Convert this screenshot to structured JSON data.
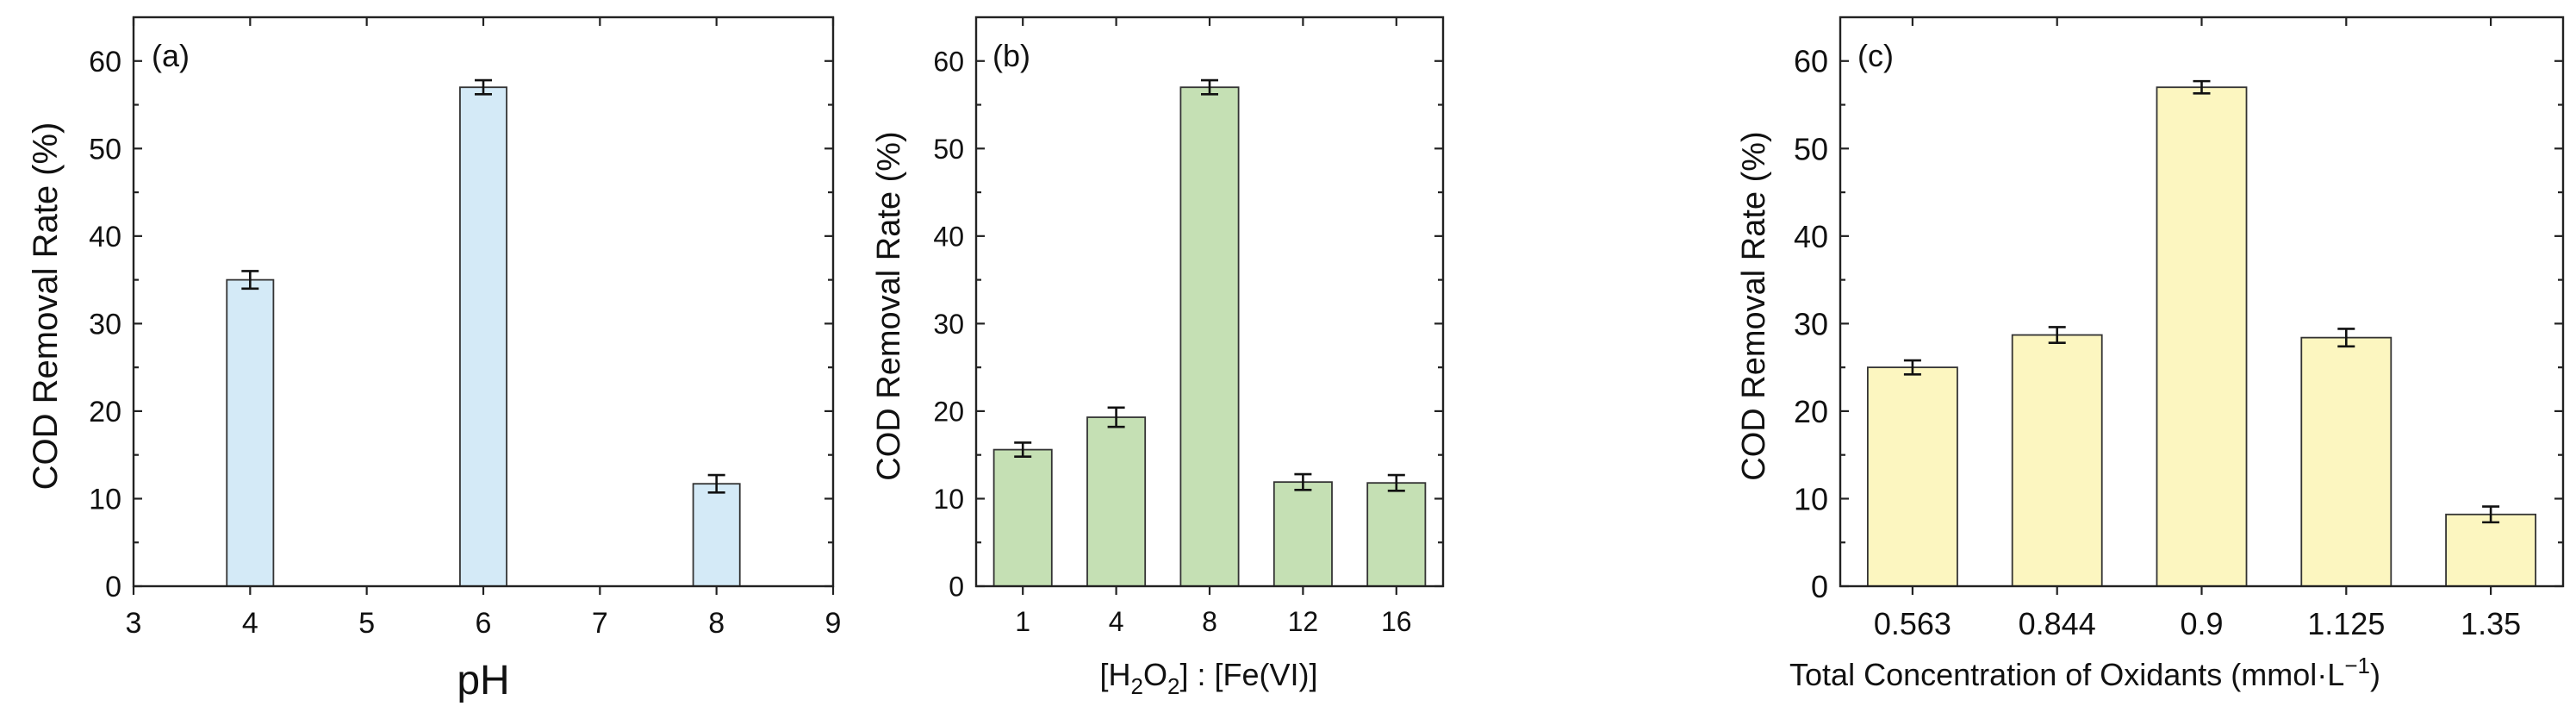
{
  "chart_data": [
    {
      "type": "bar",
      "panel_label": "(a)",
      "x_numeric": true,
      "xlim": [
        3,
        9
      ],
      "xticks": [
        "3",
        "4",
        "5",
        "6",
        "7",
        "8",
        "9"
      ],
      "x": [
        4,
        6,
        8
      ],
      "values": [
        35.0,
        57.0,
        11.7
      ],
      "errors": [
        1.0,
        0.8,
        1.0
      ],
      "xlabel": "pH",
      "ylabel": "COD Removal Rate (%)",
      "ylim": [
        0,
        65
      ],
      "yticks": [
        "0",
        "10",
        "20",
        "30",
        "40",
        "50",
        "60"
      ],
      "bar_color": "#d4eaf7",
      "grid": false
    },
    {
      "type": "bar",
      "panel_label": "(b)",
      "categories": [
        "1",
        "4",
        "8",
        "12",
        "16"
      ],
      "values": [
        15.6,
        19.3,
        57.0,
        11.9,
        11.8
      ],
      "errors": [
        0.8,
        1.1,
        0.8,
        0.9,
        0.9
      ],
      "xlabel": "[H2O2] : [Fe(VI)]",
      "ylabel": "COD Removal Rate (%)",
      "ylim": [
        0,
        65
      ],
      "yticks": [
        "0",
        "10",
        "20",
        "30",
        "40",
        "50",
        "60"
      ],
      "bar_color": "#c5e0b4",
      "grid": false
    },
    {
      "type": "bar",
      "panel_label": "(c)",
      "categories": [
        "0.563",
        "0.844",
        "0.9",
        "1.125",
        "1.35"
      ],
      "values": [
        25.0,
        28.7,
        57.0,
        28.4,
        8.2
      ],
      "errors": [
        0.8,
        0.9,
        0.7,
        1.0,
        0.9
      ],
      "xlabel": "Total Concentration of Oxidants (mmol·L−1)",
      "ylabel": "COD Removal Rate (%)",
      "ylim": [
        0,
        65
      ],
      "yticks": [
        "0",
        "10",
        "20",
        "30",
        "40",
        "50",
        "60"
      ],
      "bar_color": "#fcf6c0",
      "grid": false
    }
  ]
}
